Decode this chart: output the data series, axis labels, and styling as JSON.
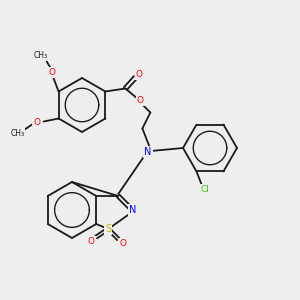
{
  "background_color": "#eeeeee",
  "atom_colors": {
    "N": "#0000ff",
    "O": "#ff0000",
    "S": "#bbbb00",
    "Cl": "#33cc00"
  },
  "bond_color": "#1a1a1a",
  "lw": 1.3,
  "figsize": [
    3.0,
    3.0
  ],
  "dpi": 100
}
